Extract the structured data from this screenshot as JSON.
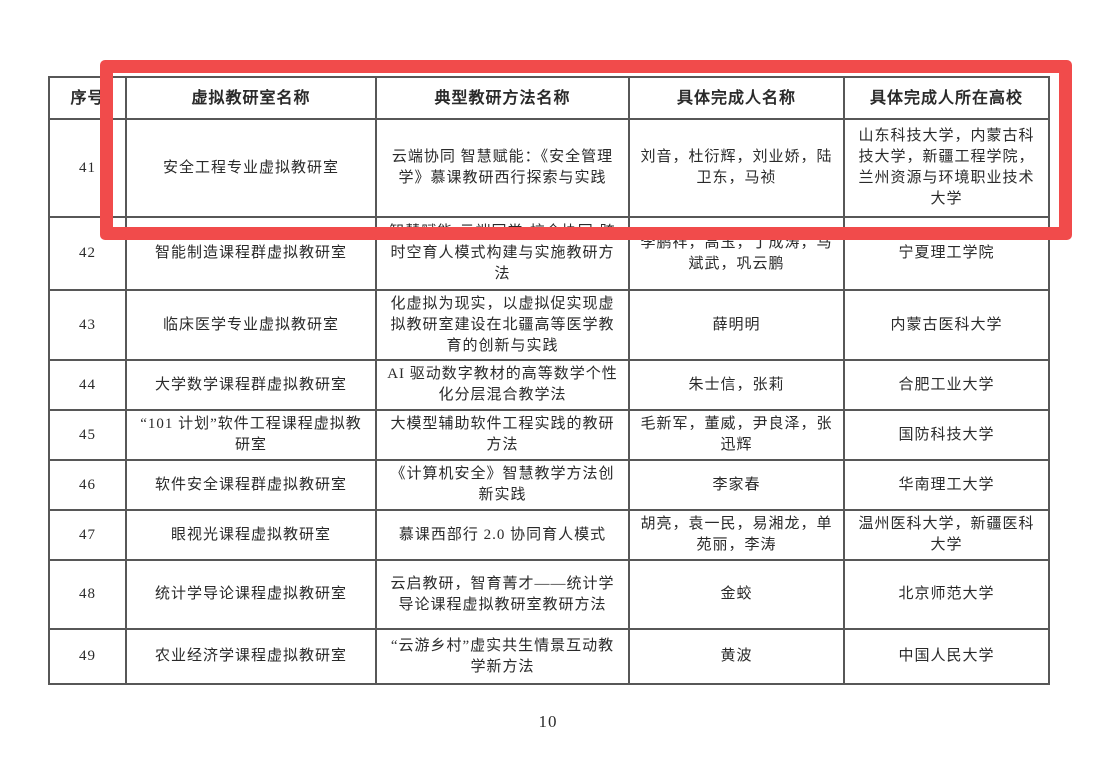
{
  "page": {
    "number": "10"
  },
  "annotation": {
    "color": "#f14b4b",
    "purpose": "highlight-row-41"
  },
  "table": {
    "headers": [
      "序号",
      "虚拟教研室名称",
      "典型教研方法名称",
      "具体完成人名称",
      "具体完成人所在高校"
    ],
    "rows": [
      {
        "no": "41",
        "room": "安全工程专业虚拟教研室",
        "method": "云端协同 智慧赋能：《安全管理学》慕课教研西行探索与实践",
        "people": "刘音，杜衍辉，刘业娇，陆卫东，马祯",
        "schools": "山东科技大学，内蒙古科技大学，新疆工程学院，兰州资源与环境职业技术大学"
      },
      {
        "no": "42",
        "room": "智能制造课程群虚拟教研室",
        "method": "智慧赋能•云端同堂•校企协同-跨时空育人模式构建与实施教研方法",
        "people": "李鹏祥，高玉，丁成涛，马斌武，巩云鹏",
        "schools": "宁夏理工学院"
      },
      {
        "no": "43",
        "room": "临床医学专业虚拟教研室",
        "method": "化虚拟为现实，以虚拟促实现虚拟教研室建设在北疆高等医学教育的创新与实践",
        "people": "薛明明",
        "schools": "内蒙古医科大学"
      },
      {
        "no": "44",
        "room": "大学数学课程群虚拟教研室",
        "method": "AI 驱动数字教材的高等数学个性化分层混合教学法",
        "people": "朱士信，张莉",
        "schools": "合肥工业大学"
      },
      {
        "no": "45",
        "room": "“101 计划”软件工程课程虚拟教研室",
        "method": "大模型辅助软件工程实践的教研方法",
        "people": "毛新军，董威，尹良泽，张迅辉",
        "schools": "国防科技大学"
      },
      {
        "no": "46",
        "room": "软件安全课程群虚拟教研室",
        "method": "《计算机安全》智慧教学方法创新实践",
        "people": "李家春",
        "schools": "华南理工大学"
      },
      {
        "no": "47",
        "room": "眼视光课程虚拟教研室",
        "method": "慕课西部行 2.0 协同育人模式",
        "people": "胡亮，袁一民，易湘龙，单苑丽，李涛",
        "schools": "温州医科大学，新疆医科大学"
      },
      {
        "no": "48",
        "room": "统计学导论课程虚拟教研室",
        "method": "云启教研，智育菁才——统计学导论课程虚拟教研室教研方法",
        "people": "金蛟",
        "schools": "北京师范大学"
      },
      {
        "no": "49",
        "room": "农业经济学课程虚拟教研室",
        "method": "“云游乡村”虚实共生情景互动教学新方法",
        "people": "黄波",
        "schools": "中国人民大学"
      }
    ]
  }
}
